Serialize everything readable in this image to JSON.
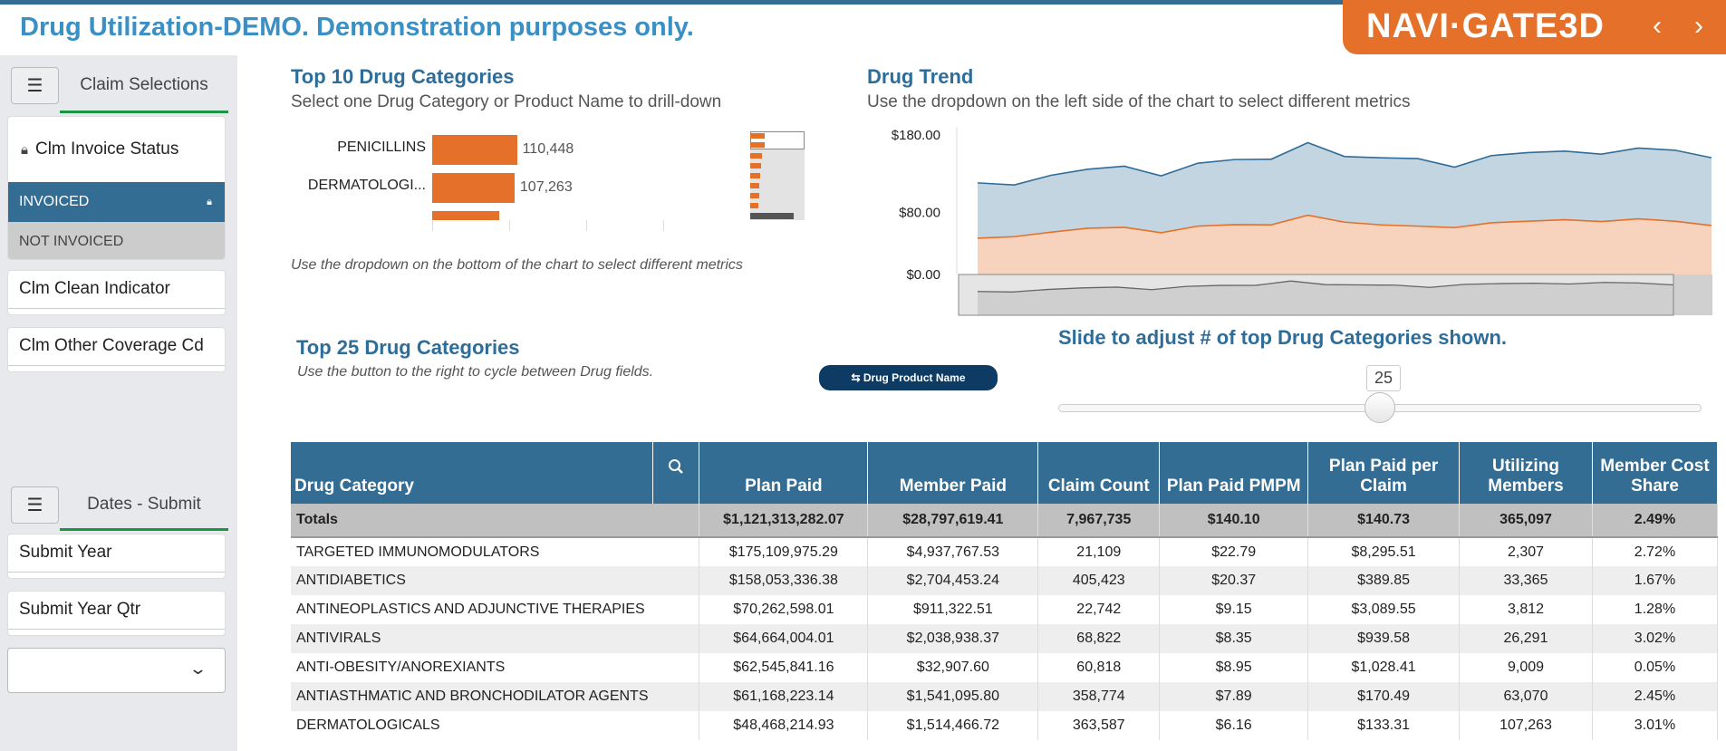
{
  "title": "Drug Utilization-DEMO. Demonstration purposes only.",
  "logo": {
    "brand": "NAVI·GATE3D",
    "prev": "‹",
    "next": "›",
    "color": "#e5702a"
  },
  "sidebar": {
    "claim_header": "Claim Selections",
    "invoice_title": "Clm Invoice Status",
    "invoice_options": [
      {
        "label": "INVOICED",
        "selected": true
      },
      {
        "label": "NOT INVOICED",
        "selected": false
      }
    ],
    "clean": "Clm Clean Indicator",
    "other": "Clm Other Coverage Cd",
    "dates_header": "Dates - Submit",
    "submit_year": "Submit Year",
    "submit_qtr": "Submit Year Qtr",
    "dropdown_value": ""
  },
  "top10": {
    "title": "Top 10 Drug Categories",
    "subtitle": "Select one Drug Category or Product Name to drill-down",
    "note": "Use the dropdown on the bottom of the chart to select different metrics",
    "bars": [
      {
        "label": "PENICILLINS",
        "value": 110448,
        "text": "110,448"
      },
      {
        "label": "DERMATOLOGI...",
        "value": 107263,
        "text": "107,263"
      }
    ]
  },
  "trend": {
    "title": "Drug Trend",
    "subtitle": "Use the dropdown on the left side of the chart to select different metrics"
  },
  "chart_data": {
    "type": "area",
    "ylim": [
      0,
      180
    ],
    "yticks": [
      "$180.00",
      "$80.00",
      "$0.00"
    ],
    "series": [
      {
        "color": "#2f6d99",
        "values": [
          118.2,
          115.5,
          128,
          135.8,
          139.7,
          127.2,
          143.6,
          148.3,
          148.7,
          170.1,
          152.2,
          150.6,
          149.5,
          138.5,
          153.4,
          157.3,
          159.2,
          155.3,
          163.1,
          160.4,
          150.6
        ]
      },
      {
        "color": "#e5702a",
        "values": [
          46.8,
          48.8,
          54.6,
          59.7,
          60.9,
          53.9,
          62.4,
          64.4,
          64,
          76.5,
          67.5,
          64,
          62.4,
          60.5,
          66.7,
          68.7,
          70.6,
          68.3,
          71.8,
          68.7,
          63.2
        ]
      }
    ]
  },
  "top25": {
    "title": "Top 25 Drug Categories",
    "subtitle": "Use the button to the right to cycle between Drug fields.",
    "button": "⇆ Drug Product Name"
  },
  "slider": {
    "label": "Slide to adjust # of top Drug Categories shown.",
    "value": "25",
    "min": 0,
    "max": 50
  },
  "table": {
    "headers": [
      "Drug Category",
      "Plan Paid",
      "Member Paid",
      "Claim Count",
      "Plan Paid PMPM",
      "Plan Paid per Claim",
      "Utilizing Members",
      "Member Cost Share"
    ],
    "totals": [
      "Totals",
      "$1,121,313,282.07",
      "$28,797,619.41",
      "7,967,735",
      "$140.10",
      "$140.73",
      "365,097",
      "2.49%"
    ],
    "rows": [
      [
        "TARGETED IMMUNOMODULATORS",
        "$175,109,975.29",
        "$4,937,767.53",
        "21,109",
        "$22.79",
        "$8,295.51",
        "2,307",
        "2.72%"
      ],
      [
        "ANTIDIABETICS",
        "$158,053,336.38",
        "$2,704,453.24",
        "405,423",
        "$20.37",
        "$389.85",
        "33,365",
        "1.67%"
      ],
      [
        "ANTINEOPLASTICS AND ADJUNCTIVE THERAPIES",
        "$70,262,598.01",
        "$911,322.51",
        "22,742",
        "$9.15",
        "$3,089.55",
        "3,812",
        "1.28%"
      ],
      [
        "ANTIVIRALS",
        "$64,664,004.01",
        "$2,038,938.37",
        "68,822",
        "$8.35",
        "$939.58",
        "26,291",
        "3.02%"
      ],
      [
        "ANTI-OBESITY/ANOREXIANTS",
        "$62,545,841.16",
        "$32,907.60",
        "60,818",
        "$8.95",
        "$1,028.41",
        "9,009",
        "0.05%"
      ],
      [
        "ANTIASTHMATIC AND BRONCHODILATOR AGENTS",
        "$61,168,223.14",
        "$1,541,095.80",
        "358,774",
        "$7.89",
        "$170.49",
        "63,070",
        "2.45%"
      ],
      [
        "DERMATOLOGICALS",
        "$48,468,214.93",
        "$1,514,466.72",
        "363,587",
        "$6.16",
        "$133.31",
        "107,263",
        "3.01%"
      ]
    ]
  }
}
